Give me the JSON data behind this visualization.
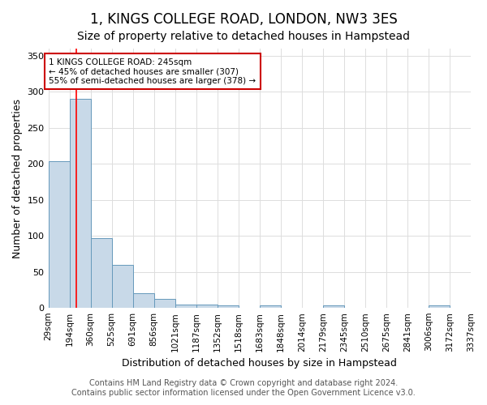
{
  "title": "1, KINGS COLLEGE ROAD, LONDON, NW3 3ES",
  "subtitle": "Size of property relative to detached houses in Hampstead",
  "xlabel": "Distribution of detached houses by size in Hampstead",
  "ylabel": "Number of detached properties",
  "bin_edges": [
    29,
    194,
    360,
    525,
    691,
    856,
    1021,
    1187,
    1352,
    1518,
    1683,
    1848,
    2014,
    2179,
    2345,
    2510,
    2675,
    2841,
    3006,
    3172,
    3337
  ],
  "bin_labels": [
    "29sqm",
    "194sqm",
    "360sqm",
    "525sqm",
    "691sqm",
    "856sqm",
    "1021sqm",
    "1187sqm",
    "1352sqm",
    "1518sqm",
    "1683sqm",
    "1848sqm",
    "2014sqm",
    "2179sqm",
    "2345sqm",
    "2510sqm",
    "2675sqm",
    "2841sqm",
    "3006sqm",
    "3172sqm",
    "3337sqm"
  ],
  "bar_heights": [
    204,
    290,
    97,
    60,
    20,
    12,
    5,
    5,
    3,
    0,
    3,
    0,
    0,
    3,
    0,
    0,
    0,
    0,
    3,
    0
  ],
  "bar_color": "#c8d9e8",
  "bar_edge_color": "#6699bb",
  "red_line_x": 245,
  "ylim": [
    0,
    360
  ],
  "yticks": [
    0,
    50,
    100,
    150,
    200,
    250,
    300,
    350
  ],
  "annotation_text": "1 KINGS COLLEGE ROAD: 245sqm\n← 45% of detached houses are smaller (307)\n55% of semi-detached houses are larger (378) →",
  "annotation_box_color": "#ffffff",
  "annotation_box_edge": "#cc0000",
  "footer_line1": "Contains HM Land Registry data © Crown copyright and database right 2024.",
  "footer_line2": "Contains public sector information licensed under the Open Government Licence v3.0.",
  "background_color": "#ffffff",
  "grid_color": "#dddddd",
  "title_fontsize": 12,
  "subtitle_fontsize": 10,
  "label_fontsize": 9,
  "tick_fontsize": 7.5,
  "footer_fontsize": 7
}
